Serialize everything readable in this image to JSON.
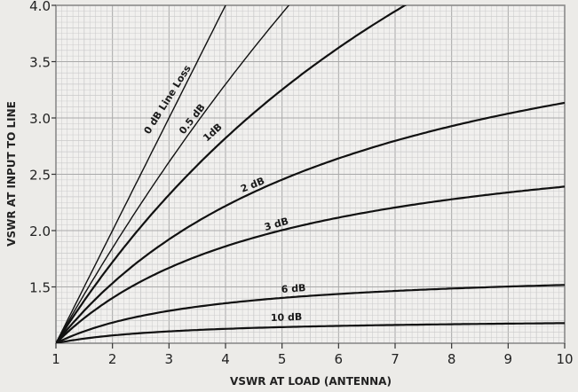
{
  "chart_data": {
    "type": "line",
    "title": "",
    "xlabel": "VSWR AT LOAD (ANTENNA)",
    "ylabel": "VSWR AT INPUT TO LINE",
    "xlim": [
      1,
      10
    ],
    "ylim": [
      1,
      4.0
    ],
    "x_ticks": [
      "1",
      "2",
      "3",
      "4",
      "5",
      "6",
      "7",
      "8",
      "9",
      "10"
    ],
    "y_ticks": [
      "1.5",
      "2.0",
      "2.5",
      "3.0",
      "3.5",
      "4.0"
    ],
    "grid": true,
    "x": [
      1,
      2,
      3,
      4,
      5,
      6,
      7,
      8,
      9,
      10
    ],
    "series": [
      {
        "name": "0 dB Line Loss",
        "loss_db": 0,
        "label": "0 dB Line Loss",
        "values": [
          1.0,
          2.0,
          3.0,
          4.0,
          null,
          null,
          null,
          null,
          null,
          null
        ]
      },
      {
        "name": "0.5 dB",
        "loss_db": 0.5,
        "label": "0.5 dB",
        "values": [
          1.0,
          1.89,
          2.72,
          3.5,
          4.22,
          null,
          null,
          null,
          null,
          null
        ]
      },
      {
        "name": "1 dB",
        "loss_db": 1,
        "label": "1dB",
        "values": [
          1.0,
          1.8,
          2.48,
          3.06,
          3.57,
          4.01,
          null,
          null,
          null,
          null
        ]
      },
      {
        "name": "2 dB",
        "loss_db": 2,
        "label": "2 dB",
        "values": [
          1.0,
          1.63,
          2.09,
          2.43,
          2.7,
          2.91,
          3.08,
          3.22,
          3.34,
          3.44
        ]
      },
      {
        "name": "3 dB",
        "loss_db": 3,
        "label": "3 dB",
        "values": [
          1.0,
          1.5,
          1.81,
          2.02,
          2.17,
          2.29,
          2.38,
          2.45,
          2.51,
          2.56
        ]
      },
      {
        "name": "6 dB",
        "loss_db": 6,
        "label": "6 dB",
        "values": [
          1.0,
          1.23,
          1.34,
          1.41,
          1.46,
          1.49,
          1.51,
          1.53,
          1.55,
          1.56
        ]
      },
      {
        "name": "10 dB",
        "loss_db": 10,
        "label": "10 dB",
        "values": [
          1.0,
          1.07,
          1.11,
          1.13,
          1.15,
          1.16,
          1.17,
          1.17,
          1.18,
          1.18
        ]
      }
    ],
    "legend_position": "inline labels on curves"
  },
  "colors": {
    "background": "#ecebe8",
    "grid_minor": "#c9c9c9",
    "grid_major": "#a9a9a9",
    "curve": "#111111",
    "axis": "#8a8a8a"
  }
}
